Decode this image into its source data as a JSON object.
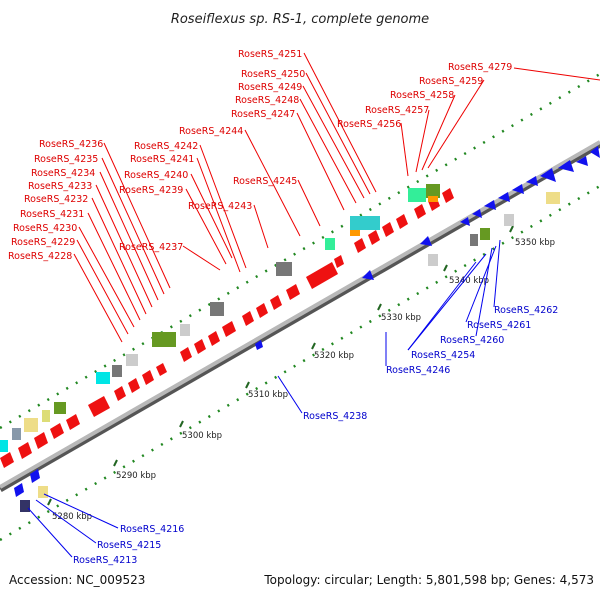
{
  "title": "Roseiflexus sp. RS-1, complete genome",
  "footer": {
    "accession": "Accession: NC_009523",
    "summary": "Topology: circular; Length: 5,801,598 bp; Genes: 4,573"
  },
  "colors": {
    "forward": "#ee0000",
    "reverse": "#0000ee",
    "backbone": "#9a9a9a",
    "dots": "#228822",
    "cyan": "#00e5e5",
    "teal": "#33dd99",
    "orange": "#ff9900",
    "olive": "#669922",
    "gray": "#777777",
    "khaki": "#eedd88"
  },
  "scale_labels": [
    "5280 kbp",
    "5290 kbp",
    "5300 kbp",
    "5310 kbp",
    "5320 kbp",
    "5330 kbp",
    "5340 kbp",
    "5350 kbp"
  ],
  "forward_labels": [
    "RoseRS_4228",
    "RoseRS_4229",
    "RoseRS_4230",
    "RoseRS_4231",
    "RoseRS_4232",
    "RoseRS_4233",
    "RoseRS_4234",
    "RoseRS_4235",
    "RoseRS_4236",
    "RoseRS_4237",
    "RoseRS_4239",
    "RoseRS_4240",
    "RoseRS_4241",
    "RoseRS_4242",
    "RoseRS_4243",
    "RoseRS_4244",
    "RoseRS_4245",
    "RoseRS_4247",
    "RoseRS_4248",
    "RoseRS_4249",
    "RoseRS_4250",
    "RoseRS_4251",
    "RoseRS_4256",
    "RoseRS_4257",
    "RoseRS_4258",
    "RoseRS_4259",
    "RoseRS_4279"
  ],
  "reverse_labels": [
    "RoseRS_4213",
    "RoseRS_4215",
    "RoseRS_4216",
    "RoseRS_4238",
    "RoseRS_4246",
    "RoseRS_4254",
    "RoseRS_4260",
    "RoseRS_4261",
    "RoseRS_4262"
  ]
}
